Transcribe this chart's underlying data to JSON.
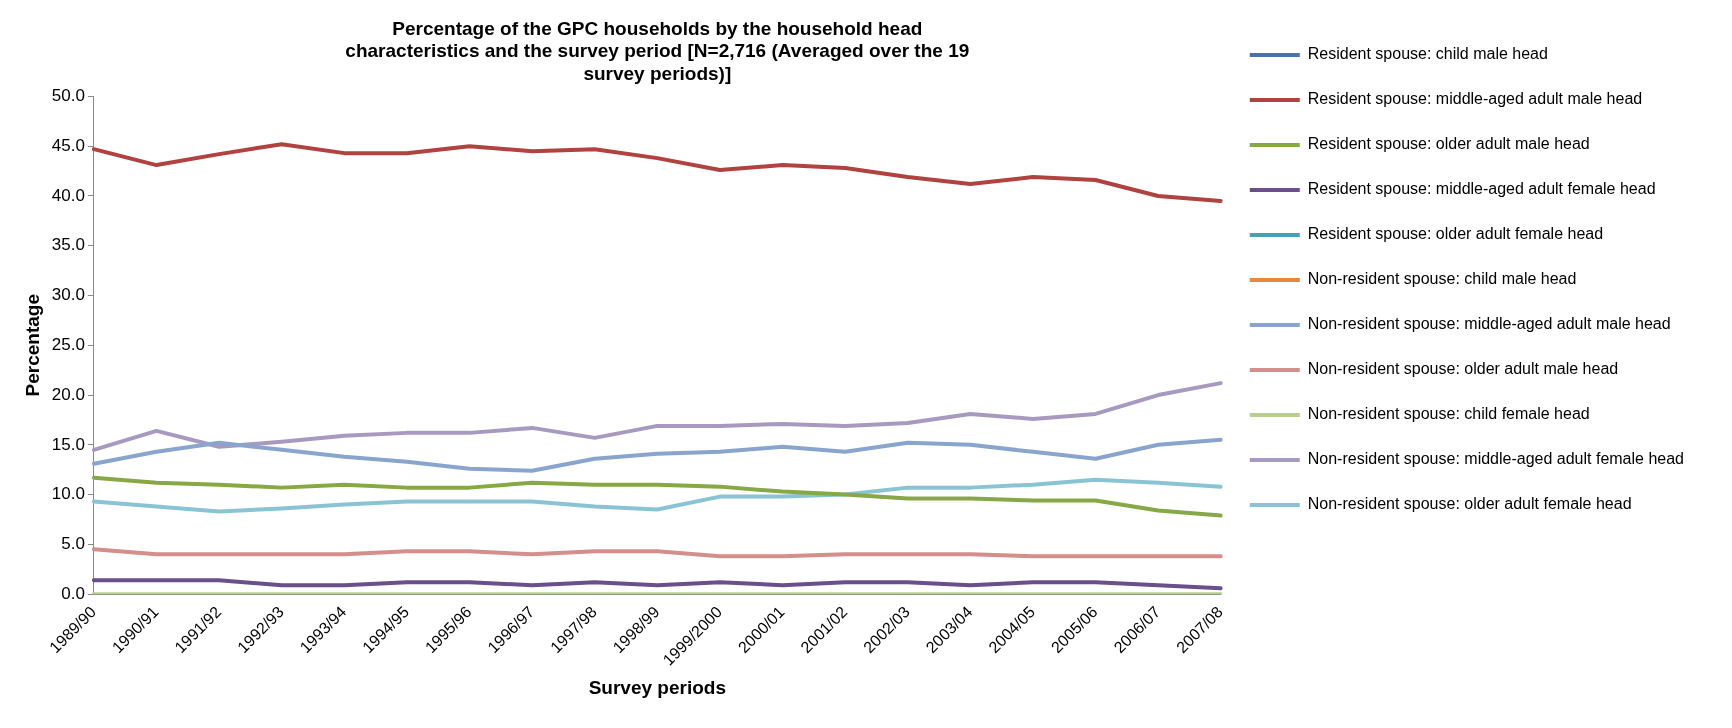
{
  "chart_data": {
    "type": "line",
    "title": "Percentage of the GPC households by the household head characteristics and the survey period [N=2,716 (Averaged over the 19 survey periods)]",
    "xlabel": "Survey periods",
    "ylabel": "Percentage",
    "categories": [
      "1989/90",
      "1990/91",
      "1991/92",
      "1992/93",
      "1993/94",
      "1994/95",
      "1995/96",
      "1996/97",
      "1997/98",
      "1998/99",
      "1999/2000",
      "2000/01",
      "2001/02",
      "2002/03",
      "2003/04",
      "2004/05",
      "2005/06",
      "2006/07",
      "2007/08"
    ],
    "ylim": [
      0,
      50
    ],
    "yticks": [
      {
        "value": 0,
        "label": "0.0"
      },
      {
        "value": 5,
        "label": "5.0"
      },
      {
        "value": 10,
        "label": "10.0"
      },
      {
        "value": 15,
        "label": "15.0"
      },
      {
        "value": 20,
        "label": "20.0"
      },
      {
        "value": 25,
        "label": "25.0"
      },
      {
        "value": 30,
        "label": "30.0"
      },
      {
        "value": 35,
        "label": "35.0"
      },
      {
        "value": 40,
        "label": "40.0"
      },
      {
        "value": 45,
        "label": "45.0"
      },
      {
        "value": 50,
        "label": "50.0"
      }
    ],
    "grid": false,
    "legend": "right",
    "marker": "none",
    "line_style": "solid",
    "series": [
      {
        "name": "Resident spouse: child male head",
        "color": "#4a74a8",
        "values": [
          null,
          null,
          null,
          null,
          null,
          null,
          null,
          null,
          null,
          null,
          null,
          null,
          null,
          null,
          null,
          null,
          null,
          null,
          null
        ]
      },
      {
        "name": "Resident spouse: middle-aged adult male head",
        "color": "#b0423f",
        "values": [
          44.7,
          43.1,
          44.2,
          45.2,
          44.3,
          44.3,
          45.0,
          44.5,
          44.7,
          43.8,
          42.6,
          43.1,
          42.8,
          41.9,
          41.2,
          41.9,
          41.6,
          40.0,
          39.5
        ]
      },
      {
        "name": "Resident spouse: older adult male head",
        "color": "#86a845",
        "values": [
          11.7,
          11.2,
          11.0,
          10.7,
          11.0,
          10.7,
          10.7,
          11.2,
          11.0,
          11.0,
          10.8,
          10.3,
          10.0,
          9.6,
          9.6,
          9.4,
          9.4,
          8.4,
          7.9
        ]
      },
      {
        "name": "Resident spouse: middle-aged adult female head",
        "color": "#6b4e8c",
        "values": [
          1.4,
          1.4,
          1.4,
          0.9,
          0.9,
          1.2,
          1.2,
          0.9,
          1.2,
          0.9,
          1.2,
          0.9,
          1.2,
          1.2,
          0.9,
          1.2,
          1.2,
          0.9,
          0.6
        ]
      },
      {
        "name": "Resident spouse: older adult female head",
        "color": "#3fa3bb",
        "values": [
          null,
          null,
          null,
          null,
          null,
          null,
          null,
          null,
          null,
          null,
          null,
          null,
          null,
          null,
          null,
          null,
          null,
          null,
          null
        ]
      },
      {
        "name": "Non-resident spouse: child male head",
        "color": "#e8883a",
        "values": [
          null,
          null,
          null,
          null,
          null,
          null,
          null,
          null,
          null,
          null,
          null,
          null,
          null,
          null,
          null,
          null,
          null,
          null,
          null
        ]
      },
      {
        "name": "Non-resident spouse: middle-aged adult male head",
        "color": "#8aa5cd",
        "values": [
          13.1,
          14.3,
          15.2,
          14.5,
          13.8,
          13.3,
          12.6,
          12.4,
          13.6,
          14.1,
          14.3,
          14.8,
          14.3,
          15.2,
          15.0,
          14.3,
          13.6,
          15.0,
          15.5
        ]
      },
      {
        "name": "Non-resident spouse: older adult male head",
        "color": "#d48e8c",
        "values": [
          4.5,
          4.0,
          4.0,
          4.0,
          4.0,
          4.3,
          4.3,
          4.0,
          4.3,
          4.3,
          3.8,
          3.8,
          4.0,
          4.0,
          4.0,
          3.8,
          3.8,
          3.8,
          3.8
        ]
      },
      {
        "name": "Non-resident spouse: child female head",
        "color": "#b8cf92",
        "values": [
          0,
          0,
          0,
          0,
          0,
          0,
          0,
          0,
          0,
          0,
          0,
          0,
          0,
          0,
          0,
          0,
          0,
          0,
          0
        ]
      },
      {
        "name": "Non-resident spouse: middle-aged adult female head",
        "color": "#a899c0",
        "values": [
          14.5,
          16.4,
          14.8,
          15.3,
          15.9,
          16.2,
          16.2,
          16.7,
          15.7,
          16.9,
          16.9,
          17.1,
          16.9,
          17.2,
          18.1,
          17.6,
          18.1,
          20.0,
          21.2
        ]
      },
      {
        "name": "Non-resident spouse: older adult female head",
        "color": "#8ac3d4",
        "values": [
          9.3,
          8.8,
          8.3,
          8.6,
          9.0,
          9.3,
          9.3,
          9.3,
          8.8,
          8.5,
          9.8,
          9.8,
          10.0,
          10.7,
          10.7,
          11.0,
          11.5,
          11.2,
          10.8
        ]
      }
    ]
  }
}
